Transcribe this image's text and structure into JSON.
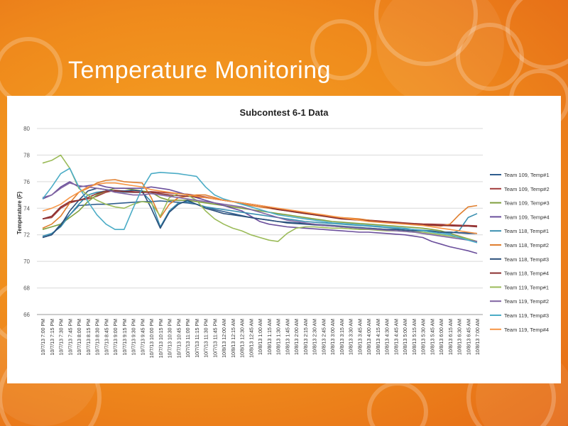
{
  "slide": {
    "title": "Temperature Monitoring"
  },
  "colors": {
    "bg_light": "#f6a623",
    "bg_dark": "#e56a17",
    "card": "#ffffff"
  },
  "chart_data": {
    "type": "line",
    "title": "Subcontest 6-1 Data",
    "xlabel": "",
    "ylabel": "Temperature (F)",
    "ylim": [
      66,
      80
    ],
    "yticks": [
      66,
      68,
      70,
      72,
      74,
      76,
      78,
      80
    ],
    "grid": true,
    "legend_position": "right",
    "categories": [
      "10/7/13 7:00 PM",
      "10/7/13 7:15 PM",
      "10/7/13 7:30 PM",
      "10/7/13 7:45 PM",
      "10/7/13 8:00 PM",
      "10/7/13 8:15 PM",
      "10/7/13 8:30 PM",
      "10/7/13 8:45 PM",
      "10/7/13 9:00 PM",
      "10/7/13 9:15 PM",
      "10/7/13 9:30 PM",
      "10/7/13 9:45 PM",
      "10/7/13 10:00 PM",
      "10/7/13 10:15 PM",
      "10/7/13 10:30 PM",
      "10/7/13 10:45 PM",
      "10/7/13 11:00 PM",
      "10/7/13 11:15 PM",
      "10/7/13 11:30 PM",
      "10/7/13 11:45 PM",
      "10/8/13 12:00 AM",
      "10/8/13 12:15 AM",
      "10/8/13 12:30 AM",
      "10/8/13 12:45 AM",
      "10/8/13 1:00 AM",
      "10/8/13 1:15 AM",
      "10/8/13 1:30 AM",
      "10/8/13 1:45 AM",
      "10/8/13 2:00 AM",
      "10/8/13 2:15 AM",
      "10/8/13 2:30 AM",
      "10/8/13 2:45 AM",
      "10/8/13 3:00 AM",
      "10/8/13 3:15 AM",
      "10/8/13 3:30 AM",
      "10/8/13 3:45 AM",
      "10/8/13 4:00 AM",
      "10/8/13 4:15 AM",
      "10/8/13 4:30 AM",
      "10/8/13 4:45 AM",
      "10/8/13 5:00 AM",
      "10/8/13 5:15 AM",
      "10/8/13 5:30 AM",
      "10/8/13 5:45 AM",
      "10/8/13 6:00 AM",
      "10/8/13 6:15 AM",
      "10/8/13 6:30 AM",
      "10/8/13 6:45 AM",
      "10/8/13 7:00 AM"
    ],
    "series": [
      {
        "name": "Team 109, Temp#1",
        "color": "#2f5d8e",
        "values": [
          71.8,
          72.0,
          72.8,
          73.5,
          74.2,
          74.25,
          74.3,
          74.3,
          74.35,
          74.4,
          74.45,
          74.5,
          74.5,
          74.55,
          74.5,
          74.45,
          74.4,
          74.3,
          74.1,
          73.9,
          73.75,
          73.6,
          73.45,
          73.3,
          73.2,
          73.1,
          73.0,
          72.95,
          72.9,
          72.85,
          72.8,
          72.75,
          72.7,
          72.65,
          72.6,
          72.55,
          72.5,
          72.45,
          72.4,
          72.4,
          72.35,
          72.3,
          72.3,
          72.25,
          72.2,
          72.2,
          72.15,
          72.15,
          72.1
        ]
      },
      {
        "name": "Team 109, Temp#2",
        "color": "#a23b3b",
        "values": [
          73.2,
          73.3,
          74.0,
          74.4,
          74.6,
          74.7,
          74.9,
          75.2,
          75.35,
          75.3,
          75.25,
          75.2,
          75.25,
          75.2,
          75.15,
          75.1,
          75.05,
          74.95,
          74.85,
          74.7,
          74.6,
          74.5,
          74.4,
          74.3,
          74.2,
          74.1,
          73.95,
          73.85,
          73.75,
          73.65,
          73.55,
          73.45,
          73.35,
          73.25,
          73.2,
          73.15,
          73.1,
          73.05,
          73.0,
          72.95,
          72.9,
          72.85,
          72.82,
          72.8,
          72.78,
          72.75,
          72.72,
          72.7,
          72.68
        ]
      },
      {
        "name": "Team 109, Temp#3",
        "color": "#7f9f3d",
        "values": [
          72.4,
          72.6,
          72.8,
          73.3,
          73.8,
          74.5,
          75.0,
          75.3,
          75.5,
          75.5,
          75.4,
          75.3,
          75.2,
          74.8,
          74.6,
          74.6,
          74.6,
          74.5,
          74.4,
          74.3,
          74.2,
          74.1,
          74.0,
          73.9,
          73.8,
          73.7,
          73.6,
          73.5,
          73.4,
          73.3,
          73.2,
          73.1,
          73.0,
          72.95,
          72.9,
          72.85,
          72.8,
          72.75,
          72.7,
          72.65,
          72.6,
          72.55,
          72.5,
          72.4,
          72.3,
          72.1,
          71.9,
          71.7,
          71.5
        ]
      },
      {
        "name": "Team 109, Temp#4",
        "color": "#6b4f9c",
        "values": [
          74.7,
          75.0,
          75.6,
          76.0,
          75.6,
          75.7,
          75.8,
          75.6,
          75.5,
          75.5,
          75.5,
          75.5,
          75.6,
          75.5,
          75.4,
          75.2,
          75.0,
          74.8,
          74.6,
          74.4,
          74.2,
          74.0,
          73.8,
          73.4,
          73.0,
          72.8,
          72.7,
          72.6,
          72.55,
          72.5,
          72.45,
          72.4,
          72.35,
          72.3,
          72.25,
          72.2,
          72.2,
          72.15,
          72.1,
          72.05,
          72.0,
          71.9,
          71.8,
          71.5,
          71.3,
          71.1,
          70.95,
          70.8,
          70.6
        ]
      },
      {
        "name": "Team 118, Temp#1",
        "color": "#3a8fb0",
        "values": [
          71.9,
          72.1,
          72.6,
          73.5,
          74.3,
          75.0,
          75.2,
          75.3,
          75.3,
          75.2,
          75.2,
          75.2,
          74.5,
          72.6,
          73.8,
          74.4,
          74.5,
          74.3,
          74.1,
          74.0,
          73.9,
          73.8,
          73.7,
          73.6,
          73.5,
          73.4,
          73.3,
          73.2,
          73.1,
          73.0,
          72.95,
          72.9,
          72.85,
          72.8,
          72.75,
          72.7,
          72.65,
          72.6,
          72.55,
          72.5,
          72.45,
          72.4,
          72.35,
          72.3,
          72.2,
          72.1,
          72.3,
          73.3,
          73.6
        ]
      },
      {
        "name": "Team 118, Temp#2",
        "color": "#e07f2f",
        "values": [
          72.5,
          72.8,
          73.4,
          74.4,
          75.2,
          75.5,
          75.9,
          76.1,
          76.15,
          76.0,
          75.95,
          75.9,
          74.8,
          73.3,
          74.3,
          74.8,
          74.9,
          75.0,
          75.0,
          74.8,
          74.6,
          74.5,
          74.35,
          74.2,
          74.1,
          74.0,
          73.9,
          73.8,
          73.7,
          73.6,
          73.5,
          73.4,
          73.35,
          73.3,
          73.25,
          73.2,
          73.1,
          73.0,
          72.95,
          72.9,
          72.85,
          72.8,
          72.75,
          72.7,
          72.65,
          72.8,
          73.5,
          74.1,
          74.2
        ]
      },
      {
        "name": "Team 118, Temp#3",
        "color": "#2a4e7a",
        "values": [
          71.8,
          72.0,
          72.7,
          73.8,
          74.6,
          75.3,
          75.5,
          75.4,
          75.3,
          75.3,
          75.35,
          75.3,
          74.0,
          72.5,
          73.7,
          74.3,
          74.6,
          74.3,
          74.0,
          73.8,
          73.6,
          73.5,
          73.4,
          73.3,
          73.2,
          73.1,
          73.0,
          72.9,
          72.85,
          72.8,
          72.75,
          72.7,
          72.65,
          72.6,
          72.55,
          72.5,
          72.5,
          72.45,
          72.4,
          72.4,
          72.35,
          72.3,
          72.3,
          72.25,
          72.2,
          72.2,
          72.15,
          72.1,
          72.1
        ]
      },
      {
        "name": "Team 118, Temp#4",
        "color": "#8a2f2f",
        "values": [
          73.2,
          73.4,
          74.1,
          74.5,
          74.6,
          74.8,
          75.1,
          75.3,
          75.3,
          75.25,
          75.2,
          75.2,
          75.2,
          75.1,
          75.0,
          74.95,
          74.9,
          74.85,
          74.8,
          74.7,
          74.6,
          74.5,
          74.4,
          74.3,
          74.2,
          74.05,
          73.9,
          73.8,
          73.7,
          73.6,
          73.5,
          73.4,
          73.3,
          73.2,
          73.15,
          73.1,
          73.05,
          73.0,
          72.95,
          72.9,
          72.85,
          72.8,
          72.75,
          72.72,
          72.7,
          72.68,
          72.65,
          72.65,
          72.6
        ]
      },
      {
        "name": "Team 119, Temp#1",
        "color": "#9bbb59",
        "values": [
          77.4,
          77.6,
          78.0,
          77.0,
          75.5,
          75.0,
          74.6,
          74.3,
          74.1,
          74.0,
          74.3,
          74.5,
          74.4,
          73.4,
          74.8,
          75.1,
          75.0,
          74.6,
          73.8,
          73.2,
          72.8,
          72.5,
          72.3,
          72.0,
          71.8,
          71.6,
          71.5,
          72.1,
          72.5,
          72.6,
          72.6,
          72.55,
          72.5,
          72.5,
          72.45,
          72.4,
          72.4,
          72.35,
          72.3,
          72.3,
          72.25,
          72.2,
          72.2,
          72.1,
          72.0,
          71.9,
          71.8,
          71.7,
          71.5
        ]
      },
      {
        "name": "Team 119, Temp#2",
        "color": "#8064a2",
        "values": [
          74.8,
          75.0,
          75.5,
          75.9,
          75.7,
          75.6,
          75.5,
          75.4,
          75.2,
          75.1,
          75.0,
          75.0,
          75.1,
          75.0,
          74.9,
          74.8,
          74.7,
          74.6,
          74.5,
          74.4,
          74.3,
          74.2,
          74.1,
          73.9,
          73.7,
          73.5,
          73.3,
          73.1,
          73.0,
          72.9,
          72.8,
          72.7,
          72.65,
          72.6,
          72.55,
          72.5,
          72.45,
          72.4,
          72.35,
          72.3,
          72.25,
          72.2,
          72.1,
          72.0,
          71.9,
          71.8,
          71.7,
          71.6,
          71.5
        ]
      },
      {
        "name": "Team 119, Temp#3",
        "color": "#4bacc6",
        "values": [
          74.7,
          75.6,
          76.6,
          77.0,
          75.6,
          74.5,
          73.5,
          72.8,
          72.4,
          72.4,
          74.0,
          75.5,
          76.6,
          76.7,
          76.65,
          76.6,
          76.5,
          76.4,
          75.6,
          75.0,
          74.7,
          74.5,
          74.3,
          74.1,
          73.9,
          73.7,
          73.5,
          73.4,
          73.3,
          73.2,
          73.1,
          73.0,
          72.9,
          72.85,
          72.8,
          72.75,
          72.7,
          72.65,
          72.6,
          72.55,
          72.5,
          72.4,
          72.3,
          72.2,
          72.1,
          72.0,
          71.8,
          71.6,
          71.4
        ]
      },
      {
        "name": "Team 119, Temp#4",
        "color": "#f79646",
        "values": [
          73.8,
          74.0,
          74.3,
          74.8,
          75.2,
          75.6,
          75.8,
          75.9,
          75.9,
          75.8,
          75.7,
          75.6,
          75.4,
          75.3,
          75.2,
          75.1,
          75.0,
          74.9,
          74.8,
          74.7,
          74.6,
          74.5,
          74.4,
          74.3,
          74.2,
          74.1,
          74.0,
          73.9,
          73.8,
          73.7,
          73.6,
          73.5,
          73.4,
          73.3,
          73.2,
          73.1,
          73.0,
          72.95,
          72.9,
          72.85,
          72.8,
          72.75,
          72.7,
          72.6,
          72.5,
          72.4,
          72.3,
          72.2,
          72.1
        ]
      }
    ]
  }
}
